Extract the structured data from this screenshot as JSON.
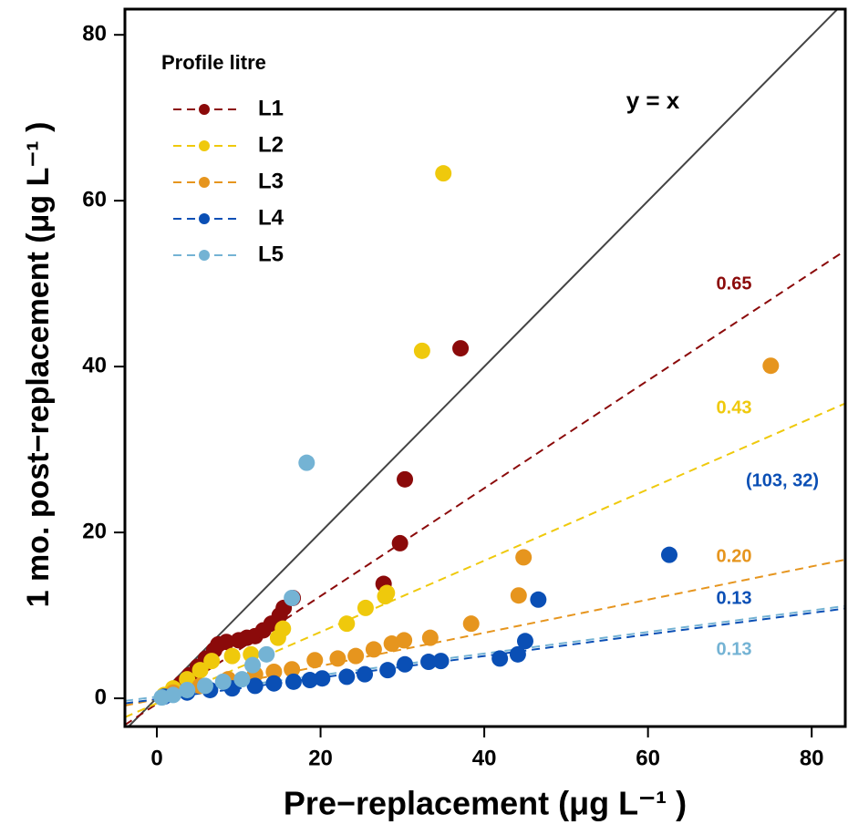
{
  "chart_data": {
    "type": "scatter",
    "x_label": "Pre−replacement (μg L⁻¹ )",
    "y_label": "1 mo. post−replacement (μg L⁻¹ )",
    "xlim": [
      -3.9,
      84.1
    ],
    "ylim": [
      -3.4,
      83.1
    ],
    "xticks": [
      0,
      20,
      40,
      60,
      80
    ],
    "yticks": [
      0,
      20,
      40,
      60,
      80
    ],
    "legend_title": "Profile litre",
    "legend_position": "upper left",
    "identity_line": true,
    "annotations": [
      {
        "text": "y = x",
        "color": "#000000"
      },
      {
        "text": "(103, 32)",
        "color": "#0a4fb5"
      }
    ],
    "series": [
      {
        "name": "L1",
        "color": "#8b0a0a",
        "slope": 0.65,
        "slope_label": "0.65",
        "intercept": -0.67,
        "x": [
          1,
          2,
          3,
          4,
          5,
          6,
          7,
          7.5,
          8.5,
          10,
          11,
          12,
          13,
          14,
          15,
          15.5,
          16.6,
          27.7,
          29.7,
          30.3,
          37.1
        ],
        "values": [
          0.3,
          1,
          1.8,
          2.8,
          3.8,
          4.8,
          5.8,
          6.5,
          6.8,
          7,
          7.3,
          7.5,
          8.2,
          9,
          10,
          10.9,
          12.1,
          13.8,
          18.7,
          26.4,
          42.2
        ]
      },
      {
        "name": "L2",
        "color": "#efc90c",
        "slope": 0.43,
        "slope_label": "0.43",
        "intercept": -0.6,
        "x": [
          0.9,
          2,
          3.7,
          5.3,
          6.7,
          9.2,
          11.5,
          14.8,
          15.4,
          23.2,
          25.5,
          27.9,
          28.1,
          32.4,
          35
        ],
        "values": [
          0.4,
          1.2,
          2.3,
          3.4,
          4.5,
          5.1,
          5.3,
          7.3,
          8.4,
          9,
          10.9,
          12.3,
          12.7,
          41.9,
          63.3
        ]
      },
      {
        "name": "L3",
        "color": "#e6951e",
        "slope": 0.2,
        "slope_label": "0.20",
        "intercept": -0.1,
        "x": [
          2,
          5.3,
          8.7,
          12,
          14.3,
          16.5,
          19.3,
          22.1,
          24.3,
          26.5,
          28.7,
          30.2,
          33.4,
          38.4,
          44.2,
          44.8,
          75
        ],
        "values": [
          0.7,
          1.5,
          2.3,
          2.9,
          3.2,
          3.5,
          4.6,
          4.8,
          5.1,
          5.9,
          6.6,
          7,
          7.3,
          9,
          12.4,
          17,
          40.1
        ]
      },
      {
        "name": "L4",
        "color": "#0a4fb5",
        "slope": 0.13,
        "slope_label": "0.13",
        "intercept": -0.1,
        "x": [
          0.9,
          3.7,
          6.5,
          9.2,
          12,
          14.3,
          16.7,
          18.7,
          20.2,
          23.2,
          25.4,
          28.2,
          30.3,
          33.2,
          34.7,
          41.9,
          44.1,
          45,
          46.6,
          62.6
        ],
        "values": [
          0.2,
          0.7,
          1,
          1.2,
          1.5,
          1.8,
          2,
          2.2,
          2.4,
          2.6,
          2.9,
          3.4,
          4.1,
          4.4,
          4.5,
          4.8,
          5.3,
          6.9,
          11.9,
          17.3
        ]
      },
      {
        "name": "L5",
        "color": "#74b3d4",
        "slope": 0.13,
        "slope_label": "0.13",
        "intercept": 0.2,
        "x": [
          0.6,
          2,
          3.7,
          5.9,
          8.1,
          10.4,
          11.7,
          13.4,
          16.5,
          18.3
        ],
        "values": [
          0.1,
          0.4,
          1,
          1.5,
          2,
          2.3,
          4,
          5.3,
          12.1,
          28.4
        ]
      }
    ]
  }
}
